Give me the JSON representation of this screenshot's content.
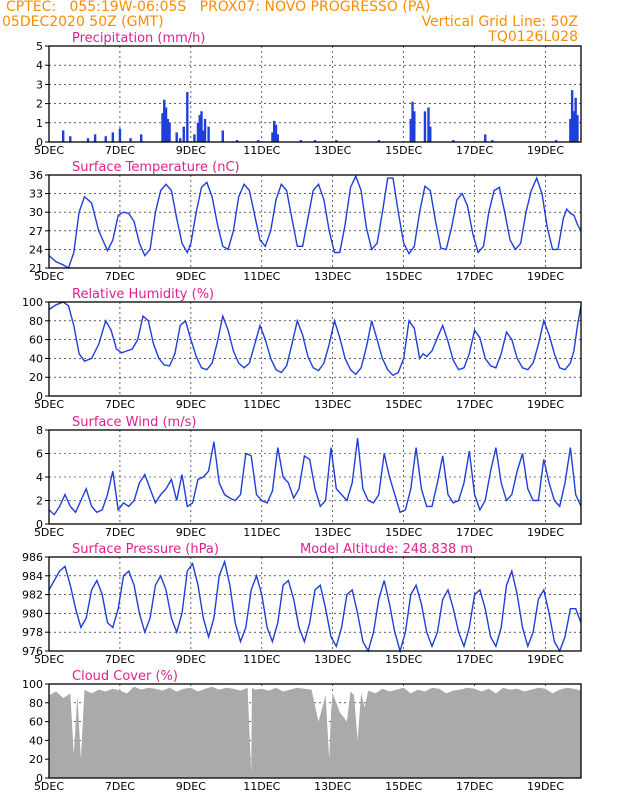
{
  "header": {
    "line1_left": "CPTEC:   055:19W-06:05S   PROX07: NOVO PROGRESSO (PA)",
    "line2_left": "05DEC2020 50Z (GMT)",
    "line2_right": "Vertical Grid Line: 50Z",
    "line3_right": "TQ0126L028"
  },
  "x_tick_labels": [
    "5DEC",
    "7DEC",
    "9DEC",
    "11DEC",
    "13DEC",
    "15DEC",
    "17DEC",
    "19DEC"
  ],
  "colors": {
    "line": "#1f3fd8",
    "bars": "#1f3fd8",
    "cloud": "#aaaaaa",
    "title": "#e0208f",
    "header": "#ff8c00"
  },
  "chart_data": [
    {
      "type": "bar",
      "title": "Precipitation (mm/h)",
      "ylim": [
        0,
        5
      ],
      "yticks": [
        0,
        1,
        2,
        3,
        4,
        5
      ],
      "x_range": [
        5,
        20
      ],
      "x": [
        5.4,
        5.6,
        6.1,
        6.3,
        6.6,
        6.8,
        7.0,
        7.3,
        7.6,
        8.2,
        8.25,
        8.3,
        8.35,
        8.4,
        8.6,
        8.7,
        8.8,
        8.9,
        9.1,
        9.2,
        9.25,
        9.3,
        9.35,
        9.4,
        9.5,
        9.9,
        10.3,
        10.9,
        11.3,
        11.35,
        11.4,
        11.45,
        12.1,
        12.5,
        13.1,
        14.3,
        15.2,
        15.25,
        15.3,
        15.6,
        15.7,
        15.75,
        16.4,
        17.3,
        17.5,
        19.3,
        19.7,
        19.75,
        19.8,
        19.85,
        19.9
      ],
      "values": [
        0.6,
        0.3,
        0.2,
        0.4,
        0.3,
        0.5,
        0.7,
        0.2,
        0.4,
        1.5,
        2.2,
        1.8,
        1.2,
        1.0,
        0.5,
        0.2,
        0.8,
        2.6,
        0.4,
        1.0,
        1.4,
        1.6,
        0.6,
        1.2,
        0.8,
        0.6,
        0.1,
        0.1,
        0.5,
        1.1,
        0.9,
        0.4,
        0.1,
        0.1,
        0.1,
        0.1,
        1.2,
        2.1,
        1.6,
        1.6,
        1.8,
        0.8,
        0.1,
        0.4,
        0.1,
        0.1,
        1.2,
        2.7,
        1.6,
        2.3,
        1.4
      ]
    },
    {
      "type": "line",
      "title": "Surface Temperature (nC)",
      "ylim": [
        21,
        36
      ],
      "yticks": [
        21,
        24,
        27,
        30,
        33,
        36
      ],
      "x_range": [
        5,
        20
      ],
      "x": [
        5.0,
        5.2,
        5.4,
        5.55,
        5.7,
        5.85,
        6.0,
        6.2,
        6.4,
        6.65,
        6.8,
        6.95,
        7.1,
        7.25,
        7.4,
        7.55,
        7.7,
        7.85,
        8.0,
        8.15,
        8.3,
        8.45,
        8.6,
        8.75,
        8.9,
        9.0,
        9.15,
        9.3,
        9.45,
        9.6,
        9.75,
        9.9,
        10.05,
        10.2,
        10.35,
        10.5,
        10.65,
        10.8,
        10.95,
        11.1,
        11.25,
        11.4,
        11.55,
        11.7,
        11.85,
        12.0,
        12.15,
        12.3,
        12.45,
        12.6,
        12.75,
        12.9,
        13.05,
        13.2,
        13.35,
        13.5,
        13.65,
        13.8,
        13.95,
        14.1,
        14.25,
        14.4,
        14.55,
        14.7,
        14.85,
        15.0,
        15.15,
        15.3,
        15.45,
        15.6,
        15.75,
        15.9,
        16.05,
        16.2,
        16.35,
        16.5,
        16.65,
        16.8,
        16.95,
        17.1,
        17.25,
        17.4,
        17.55,
        17.7,
        17.85,
        18.0,
        18.15,
        18.3,
        18.45,
        18.6,
        18.75,
        18.9,
        19.05,
        19.2,
        19.35,
        19.5,
        19.6,
        19.7,
        19.8,
        19.9,
        20.0
      ],
      "values": [
        23,
        22,
        21.5,
        21,
        23.5,
        30,
        32.5,
        31.5,
        27,
        23.8,
        25.5,
        29.5,
        30,
        29.8,
        28.5,
        25,
        23,
        24,
        30,
        33.5,
        34.5,
        33.5,
        29,
        25,
        23.5,
        25,
        30,
        34,
        34.8,
        32.5,
        28,
        24.5,
        24,
        27,
        32.5,
        34.5,
        33.5,
        29.5,
        25.5,
        24.5,
        27,
        32,
        34.5,
        33.5,
        29,
        24.5,
        24.5,
        29,
        33.5,
        34.5,
        32,
        27,
        23.5,
        23.5,
        28,
        34,
        35.8,
        33.5,
        27.5,
        24,
        25,
        30,
        35.5,
        35.5,
        30,
        25,
        23.3,
        24.5,
        30,
        34.2,
        33.5,
        28.5,
        24.2,
        24,
        27.5,
        32,
        33,
        31,
        26.5,
        23.5,
        24.5,
        30,
        33.5,
        34,
        30,
        25.5,
        24,
        25,
        30,
        33.5,
        35.5,
        33,
        27.5,
        24,
        24,
        29,
        30.5,
        29.8,
        29.5,
        28,
        27
      ]
    },
    {
      "type": "line",
      "title": "Relative Humidity (%)",
      "ylim": [
        0,
        100
      ],
      "yticks": [
        0,
        20,
        40,
        60,
        80,
        100
      ],
      "x_range": [
        5,
        20
      ],
      "x": [
        5.0,
        5.2,
        5.4,
        5.55,
        5.7,
        5.85,
        6.0,
        6.2,
        6.4,
        6.6,
        6.75,
        6.9,
        7.05,
        7.2,
        7.35,
        7.5,
        7.65,
        7.8,
        7.95,
        8.1,
        8.25,
        8.4,
        8.55,
        8.7,
        8.85,
        9.0,
        9.15,
        9.3,
        9.45,
        9.6,
        9.75,
        9.9,
        10.05,
        10.2,
        10.35,
        10.5,
        10.65,
        10.8,
        10.95,
        11.1,
        11.25,
        11.4,
        11.55,
        11.7,
        11.85,
        12.0,
        12.15,
        12.3,
        12.45,
        12.6,
        12.75,
        12.9,
        13.05,
        13.2,
        13.35,
        13.5,
        13.65,
        13.8,
        13.95,
        14.1,
        14.25,
        14.4,
        14.55,
        14.7,
        14.85,
        15.0,
        15.15,
        15.3,
        15.45,
        15.55,
        15.65,
        15.8,
        15.95,
        16.1,
        16.25,
        16.4,
        16.55,
        16.7,
        16.85,
        17.0,
        17.15,
        17.3,
        17.45,
        17.6,
        17.75,
        17.9,
        18.05,
        18.2,
        18.35,
        18.5,
        18.65,
        18.8,
        18.95,
        19.1,
        19.25,
        19.4,
        19.55,
        19.7,
        19.8,
        19.9,
        20.0
      ],
      "values": [
        92,
        97,
        100,
        96,
        75,
        45,
        37,
        40,
        55,
        80,
        70,
        50,
        46,
        48,
        50,
        60,
        85,
        80,
        55,
        40,
        33,
        32,
        45,
        75,
        80,
        60,
        42,
        30,
        28,
        35,
        58,
        85,
        70,
        48,
        35,
        30,
        35,
        55,
        75,
        60,
        40,
        28,
        25,
        32,
        55,
        80,
        65,
        42,
        30,
        27,
        35,
        55,
        80,
        62,
        40,
        28,
        23,
        30,
        52,
        80,
        60,
        40,
        28,
        22,
        25,
        40,
        80,
        72,
        40,
        45,
        42,
        48,
        62,
        75,
        58,
        38,
        28,
        30,
        45,
        70,
        62,
        40,
        32,
        30,
        45,
        68,
        60,
        40,
        30,
        28,
        35,
        55,
        80,
        65,
        45,
        30,
        28,
        35,
        48,
        75,
        96
      ]
    },
    {
      "type": "line",
      "title": "Surface Wind (m/s)",
      "ylim": [
        0,
        8
      ],
      "yticks": [
        0,
        2,
        4,
        6,
        8
      ],
      "x_range": [
        5,
        20
      ],
      "x": [
        5.0,
        5.15,
        5.3,
        5.45,
        5.6,
        5.75,
        5.9,
        6.05,
        6.2,
        6.35,
        6.5,
        6.65,
        6.8,
        6.95,
        7.1,
        7.25,
        7.4,
        7.55,
        7.7,
        7.85,
        8.0,
        8.15,
        8.3,
        8.45,
        8.6,
        8.75,
        8.9,
        9.05,
        9.2,
        9.35,
        9.5,
        9.65,
        9.8,
        9.95,
        10.1,
        10.25,
        10.4,
        10.55,
        10.7,
        10.85,
        11.0,
        11.15,
        11.3,
        11.45,
        11.6,
        11.75,
        11.9,
        12.05,
        12.2,
        12.35,
        12.5,
        12.65,
        12.8,
        12.95,
        13.1,
        13.25,
        13.4,
        13.55,
        13.7,
        13.85,
        14.0,
        14.15,
        14.3,
        14.45,
        14.6,
        14.75,
        14.9,
        15.05,
        15.2,
        15.35,
        15.5,
        15.65,
        15.8,
        15.95,
        16.1,
        16.25,
        16.4,
        16.55,
        16.7,
        16.85,
        17.0,
        17.15,
        17.3,
        17.45,
        17.6,
        17.75,
        17.9,
        18.05,
        18.2,
        18.35,
        18.5,
        18.65,
        18.8,
        18.95,
        19.1,
        19.25,
        19.4,
        19.55,
        19.7,
        19.85,
        20.0
      ],
      "values": [
        1.2,
        0.8,
        1.5,
        2.5,
        1.5,
        1.0,
        2.0,
        3.0,
        1.5,
        1.0,
        1.2,
        2.5,
        4.5,
        1.2,
        1.8,
        1.5,
        2.0,
        3.5,
        4.2,
        3.0,
        1.8,
        2.5,
        3.0,
        3.8,
        2.0,
        4.2,
        1.5,
        1.8,
        3.8,
        4.0,
        4.5,
        7.0,
        3.5,
        2.5,
        2.2,
        2.0,
        2.5,
        6.0,
        5.8,
        2.5,
        2.0,
        1.8,
        2.8,
        6.5,
        4.0,
        3.5,
        2.2,
        3.0,
        5.8,
        5.5,
        3.0,
        1.5,
        2.0,
        6.5,
        3.0,
        2.5,
        2.0,
        3.5,
        7.3,
        3.0,
        2.0,
        1.8,
        2.5,
        6.0,
        4.0,
        2.5,
        1.0,
        1.2,
        3.0,
        6.5,
        3.0,
        1.5,
        1.5,
        3.5,
        5.8,
        2.5,
        1.8,
        2.0,
        3.5,
        6.2,
        2.5,
        1.2,
        2.0,
        4.5,
        6.5,
        3.5,
        2.0,
        2.5,
        4.5,
        6.0,
        3.0,
        2.0,
        2.0,
        5.5,
        3.5,
        2.0,
        1.5,
        3.5,
        6.5,
        2.5,
        1.5
      ]
    },
    {
      "type": "line",
      "title": "Surface Pressure (hPa)",
      "subtitle": "Model Altitude: 248.838 m",
      "ylim": [
        976,
        986
      ],
      "yticks": [
        976,
        978,
        980,
        982,
        984,
        986
      ],
      "x_range": [
        5,
        20
      ],
      "x": [
        5.0,
        5.15,
        5.3,
        5.45,
        5.6,
        5.75,
        5.9,
        6.05,
        6.2,
        6.35,
        6.5,
        6.65,
        6.8,
        6.95,
        7.1,
        7.25,
        7.4,
        7.55,
        7.7,
        7.85,
        8.0,
        8.15,
        8.3,
        8.45,
        8.6,
        8.75,
        8.9,
        9.05,
        9.2,
        9.35,
        9.5,
        9.65,
        9.8,
        9.95,
        10.1,
        10.25,
        10.4,
        10.55,
        10.7,
        10.85,
        11.0,
        11.15,
        11.3,
        11.45,
        11.6,
        11.75,
        11.9,
        12.05,
        12.2,
        12.35,
        12.5,
        12.65,
        12.8,
        12.95,
        13.1,
        13.25,
        13.4,
        13.55,
        13.7,
        13.85,
        14.0,
        14.15,
        14.3,
        14.45,
        14.6,
        14.75,
        14.9,
        15.05,
        15.2,
        15.35,
        15.5,
        15.65,
        15.8,
        15.95,
        16.1,
        16.25,
        16.4,
        16.55,
        16.7,
        16.85,
        17.0,
        17.15,
        17.3,
        17.45,
        17.6,
        17.75,
        17.9,
        18.05,
        18.2,
        18.35,
        18.5,
        18.65,
        18.8,
        18.95,
        19.1,
        19.25,
        19.4,
        19.55,
        19.7,
        19.85,
        20.0
      ],
      "values": [
        982.5,
        983.5,
        984.5,
        985.0,
        983.0,
        980.5,
        978.5,
        979.5,
        982.5,
        983.5,
        982.0,
        979.0,
        978.5,
        980.5,
        984.0,
        984.5,
        983.0,
        980.0,
        978.0,
        979.5,
        983.0,
        984.0,
        982.5,
        979.5,
        978.0,
        980.0,
        984.5,
        985.3,
        983.0,
        979.5,
        977.5,
        979.5,
        984.0,
        985.5,
        983.0,
        979.0,
        977.0,
        978.5,
        982.5,
        984.0,
        982.0,
        978.5,
        977.0,
        979.0,
        983.0,
        983.5,
        981.5,
        978.5,
        977.0,
        979.0,
        982.5,
        983.0,
        980.5,
        977.5,
        976.5,
        978.5,
        982.0,
        982.5,
        980.0,
        977.0,
        976.0,
        978.0,
        981.5,
        983.5,
        981.0,
        978.0,
        976.0,
        978.0,
        982.0,
        983.0,
        981.0,
        978.0,
        976.5,
        978.0,
        981.5,
        982.5,
        980.5,
        978.0,
        976.5,
        978.5,
        982.0,
        982.5,
        980.5,
        977.5,
        976.5,
        978.5,
        983.0,
        984.5,
        982.0,
        978.5,
        976.5,
        978.0,
        981.5,
        982.5,
        980.0,
        977.0,
        976.0,
        977.5,
        980.5,
        980.5,
        979.0
      ]
    },
    {
      "type": "area",
      "title": "Cloud Cover (%)",
      "ylim": [
        0,
        100
      ],
      "yticks": [
        0,
        20,
        40,
        60,
        80,
        100
      ],
      "x_range": [
        5,
        20
      ],
      "x": [
        5.0,
        5.2,
        5.4,
        5.6,
        5.7,
        5.8,
        5.9,
        6.0,
        6.2,
        6.4,
        6.6,
        6.8,
        7.0,
        7.2,
        7.4,
        7.6,
        7.8,
        8.0,
        8.2,
        8.4,
        8.6,
        8.8,
        9.0,
        9.2,
        9.4,
        9.6,
        9.8,
        10.0,
        10.2,
        10.4,
        10.6,
        10.7,
        10.72,
        10.74,
        10.8,
        11.0,
        11.2,
        11.4,
        11.6,
        11.8,
        12.0,
        12.2,
        12.4,
        12.6,
        12.8,
        12.9,
        12.95,
        13.0,
        13.1,
        13.2,
        13.4,
        13.5,
        13.6,
        13.7,
        13.8,
        13.9,
        14.0,
        14.2,
        14.4,
        14.6,
        14.8,
        15.0,
        15.2,
        15.4,
        15.6,
        15.8,
        16.0,
        16.2,
        16.4,
        16.6,
        16.8,
        17.0,
        17.2,
        17.4,
        17.6,
        17.8,
        18.0,
        18.2,
        18.4,
        18.6,
        18.8,
        19.0,
        19.2,
        19.4,
        19.6,
        19.8,
        20.0
      ],
      "values": [
        88,
        92,
        85,
        90,
        25,
        88,
        20,
        94,
        90,
        94,
        92,
        95,
        93,
        90,
        97,
        94,
        96,
        95,
        93,
        96,
        92,
        95,
        96,
        92,
        95,
        97,
        94,
        96,
        95,
        93,
        96,
        5,
        95,
        96,
        94,
        95,
        93,
        96,
        92,
        94,
        96,
        95,
        94,
        60,
        88,
        20,
        70,
        90,
        80,
        70,
        60,
        92,
        88,
        40,
        90,
        75,
        93,
        90,
        95,
        92,
        94,
        96,
        90,
        94,
        92,
        96,
        95,
        90,
        93,
        94,
        96,
        95,
        92,
        95,
        90,
        96,
        94,
        95,
        92,
        94,
        96,
        95,
        90,
        94,
        96,
        95,
        93
      ]
    }
  ]
}
